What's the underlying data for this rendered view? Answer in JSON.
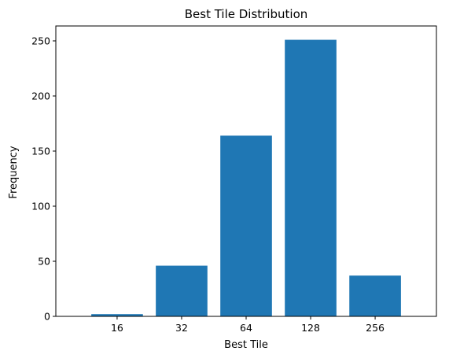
{
  "chart_data": {
    "type": "bar",
    "title": "Best Tile Distribution",
    "xlabel": "Best Tile",
    "ylabel": "Frequency",
    "categories": [
      "16",
      "32",
      "64",
      "128",
      "256"
    ],
    "values": [
      2,
      46,
      164,
      251,
      37
    ],
    "ylim": [
      0,
      263.55
    ],
    "yticks": [
      0,
      50,
      100,
      150,
      200,
      250
    ],
    "bar_color": "#1f77b4",
    "grid": false,
    "legend": "none"
  }
}
